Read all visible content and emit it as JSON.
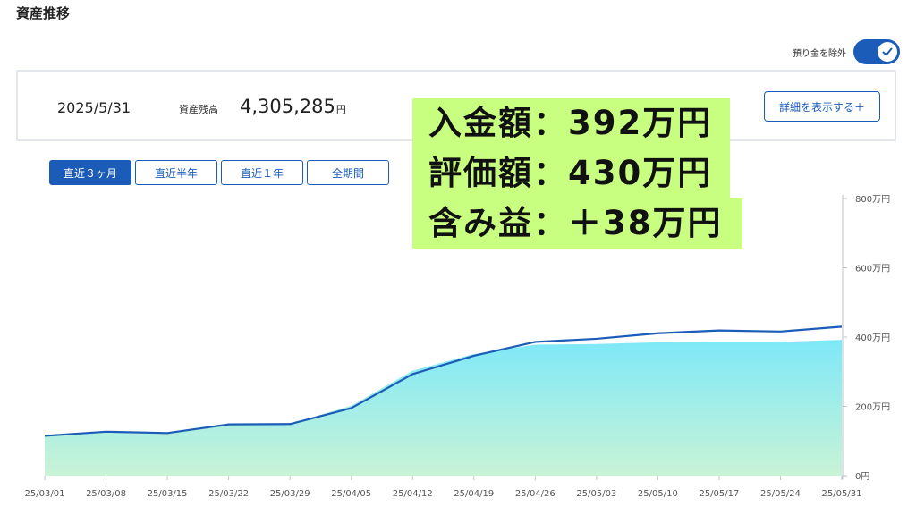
{
  "page_title": "資産推移",
  "toggle": {
    "label": "預り金を除外",
    "on": true,
    "icon": "check-icon"
  },
  "summary": {
    "date": "2025/5/31",
    "label": "資産残高",
    "value": "4,305,285",
    "unit": "円",
    "detail_button": "詳細を表示する＋"
  },
  "periods": [
    {
      "label": "直近３ヶ月",
      "active": true
    },
    {
      "label": "直近半年",
      "active": false
    },
    {
      "label": "直近１年",
      "active": false
    },
    {
      "label": "全期間",
      "active": false
    }
  ],
  "overlay": {
    "line1": "入金額：392万円",
    "line2": "評価額：430万円",
    "line3": "含み益：＋38万円",
    "highlight_color": "#c8ff80"
  },
  "colors": {
    "accent": "#1b5cb8",
    "area_top": "#7ee8f8",
    "area_bottom": "#c9f3d6"
  },
  "chart_data": {
    "type": "area",
    "x": [
      "25/03/01",
      "25/03/08",
      "25/03/15",
      "25/03/22",
      "25/03/29",
      "25/04/05",
      "25/04/12",
      "25/04/19",
      "25/04/26",
      "25/05/03",
      "25/05/10",
      "25/05/17",
      "25/05/24",
      "25/05/31"
    ],
    "series": [
      {
        "values": [
          115,
          127,
          123,
          148,
          149,
          195,
          293,
          346,
          386,
          395,
          411,
          419,
          416,
          430
        ]
      },
      {
        "values": [
          115,
          127,
          123,
          148,
          149,
          202,
          303,
          351,
          378,
          380,
          385,
          386,
          386,
          392
        ]
      }
    ],
    "yticks": [
      "0円",
      "200万円",
      "400万円",
      "600万円",
      "800万円"
    ],
    "ylim": [
      0,
      800
    ],
    "grid": false
  }
}
